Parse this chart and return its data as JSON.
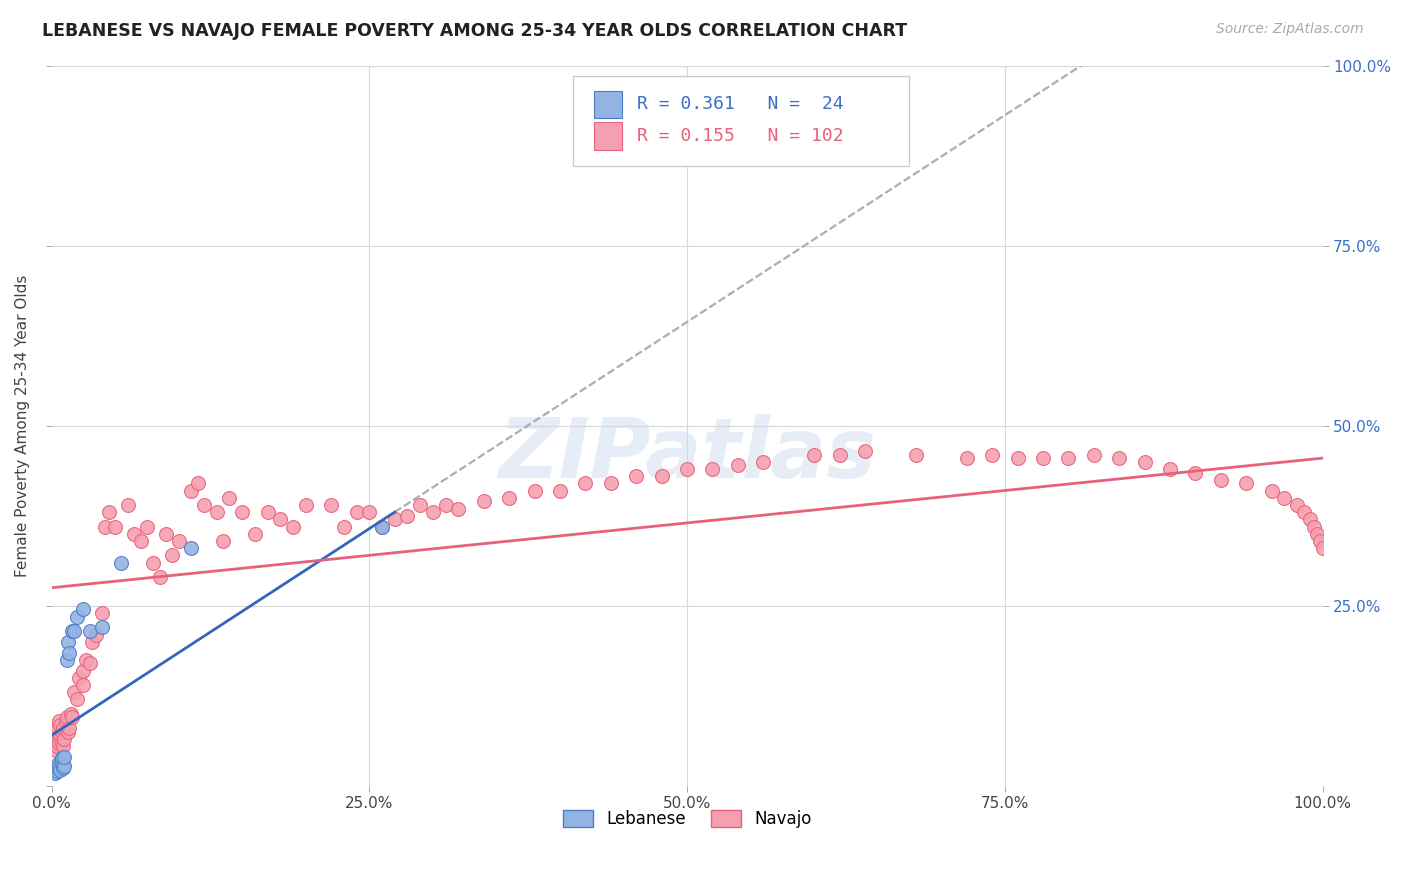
{
  "title": "LEBANESE VS NAVAJO FEMALE POVERTY AMONG 25-34 YEAR OLDS CORRELATION CHART",
  "source": "Source: ZipAtlas.com",
  "ylabel": "Female Poverty Among 25-34 Year Olds",
  "xlim": [
    0,
    1.0
  ],
  "ylim": [
    0,
    1.0
  ],
  "watermark_text": "ZIPatlas",
  "lebanese_color": "#92b4e3",
  "navajo_color": "#f5a0b0",
  "lebanese_edge_color": "#4a7cc7",
  "navajo_edge_color": "#e8607a",
  "lebanese_line_color": "#3366bb",
  "navajo_line_color": "#e8607a",
  "background_color": "#FFFFFF",
  "grid_color": "#d8d8d8",
  "R_lebanese": 0.361,
  "N_lebanese": 24,
  "R_navajo": 0.155,
  "N_navajo": 102,
  "lebanese_x": [
    0.002,
    0.003,
    0.004,
    0.005,
    0.005,
    0.006,
    0.007,
    0.008,
    0.008,
    0.009,
    0.01,
    0.01,
    0.012,
    0.013,
    0.014,
    0.016,
    0.018,
    0.02,
    0.025,
    0.03,
    0.04,
    0.055,
    0.11,
    0.26
  ],
  "lebanese_y": [
    0.022,
    0.018,
    0.02,
    0.025,
    0.03,
    0.028,
    0.022,
    0.032,
    0.038,
    0.025,
    0.028,
    0.04,
    0.175,
    0.2,
    0.185,
    0.215,
    0.215,
    0.235,
    0.245,
    0.215,
    0.22,
    0.31,
    0.33,
    0.36
  ],
  "navajo_x": [
    0.002,
    0.003,
    0.004,
    0.005,
    0.005,
    0.006,
    0.006,
    0.007,
    0.007,
    0.008,
    0.008,
    0.009,
    0.009,
    0.01,
    0.011,
    0.012,
    0.013,
    0.014,
    0.015,
    0.016,
    0.018,
    0.02,
    0.022,
    0.025,
    0.025,
    0.027,
    0.03,
    0.032,
    0.035,
    0.04,
    0.042,
    0.045,
    0.05,
    0.06,
    0.065,
    0.07,
    0.075,
    0.08,
    0.085,
    0.09,
    0.095,
    0.1,
    0.11,
    0.115,
    0.12,
    0.13,
    0.135,
    0.14,
    0.15,
    0.16,
    0.17,
    0.18,
    0.19,
    0.2,
    0.22,
    0.23,
    0.24,
    0.25,
    0.26,
    0.27,
    0.28,
    0.29,
    0.3,
    0.31,
    0.32,
    0.34,
    0.36,
    0.38,
    0.4,
    0.42,
    0.44,
    0.46,
    0.48,
    0.5,
    0.52,
    0.54,
    0.56,
    0.6,
    0.62,
    0.64,
    0.68,
    0.72,
    0.74,
    0.76,
    0.78,
    0.8,
    0.82,
    0.84,
    0.86,
    0.88,
    0.9,
    0.92,
    0.94,
    0.96,
    0.97,
    0.98,
    0.985,
    0.99,
    0.993,
    0.996,
    0.998,
    1.0
  ],
  "navajo_y": [
    0.06,
    0.05,
    0.055,
    0.065,
    0.08,
    0.06,
    0.09,
    0.07,
    0.085,
    0.06,
    0.075,
    0.08,
    0.055,
    0.065,
    0.09,
    0.095,
    0.075,
    0.08,
    0.1,
    0.095,
    0.13,
    0.12,
    0.15,
    0.14,
    0.16,
    0.175,
    0.17,
    0.2,
    0.21,
    0.24,
    0.36,
    0.38,
    0.36,
    0.39,
    0.35,
    0.34,
    0.36,
    0.31,
    0.29,
    0.35,
    0.32,
    0.34,
    0.41,
    0.42,
    0.39,
    0.38,
    0.34,
    0.4,
    0.38,
    0.35,
    0.38,
    0.37,
    0.36,
    0.39,
    0.39,
    0.36,
    0.38,
    0.38,
    0.36,
    0.37,
    0.375,
    0.39,
    0.38,
    0.39,
    0.385,
    0.395,
    0.4,
    0.41,
    0.41,
    0.42,
    0.42,
    0.43,
    0.43,
    0.44,
    0.44,
    0.445,
    0.45,
    0.46,
    0.46,
    0.465,
    0.46,
    0.455,
    0.46,
    0.455,
    0.455,
    0.455,
    0.46,
    0.455,
    0.45,
    0.44,
    0.435,
    0.425,
    0.42,
    0.41,
    0.4,
    0.39,
    0.38,
    0.37,
    0.36,
    0.35,
    0.34,
    0.33
  ],
  "leb_line_x0": 0.0,
  "leb_line_y0": 0.07,
  "leb_line_x1": 0.27,
  "leb_line_y1": 0.38,
  "nav_line_x0": 0.0,
  "nav_line_y0": 0.275,
  "nav_line_x1": 1.0,
  "nav_line_y1": 0.455
}
